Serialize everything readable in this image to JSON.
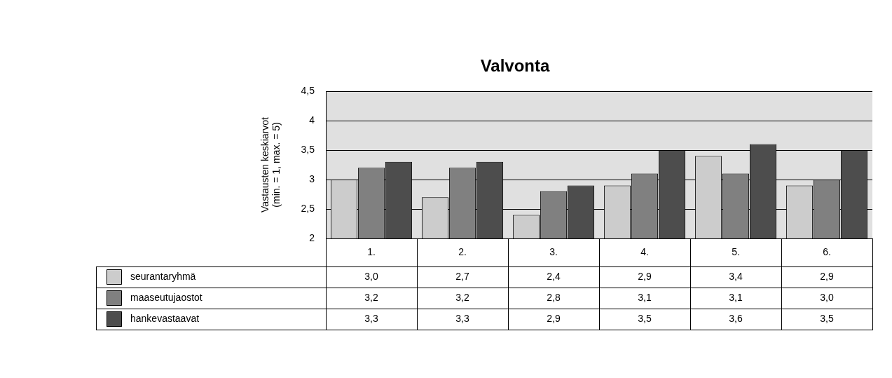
{
  "chart_data": {
    "type": "bar",
    "title": "Valvonta",
    "ylabel": "Vastausten keskiarvot\n(min. = 1, max. = 5)",
    "categories": [
      "1.",
      "2.",
      "3.",
      "4.",
      "5.",
      "6."
    ],
    "series": [
      {
        "name": "seurantaryhmä",
        "color": "#cccccc",
        "values": [
          3.0,
          2.7,
          2.4,
          2.9,
          3.4,
          2.9
        ],
        "value_labels": [
          "3,0",
          "2,7",
          "2,4",
          "2,9",
          "3,4",
          "2,9"
        ]
      },
      {
        "name": "maaseutujaostot",
        "color": "#808080",
        "values": [
          3.2,
          3.2,
          2.8,
          3.1,
          3.1,
          3.0
        ],
        "value_labels": [
          "3,2",
          "3,2",
          "2,8",
          "3,1",
          "3,1",
          "3,0"
        ]
      },
      {
        "name": "hankevastaavat",
        "color": "#4d4d4d",
        "values": [
          3.3,
          3.3,
          2.9,
          3.5,
          3.6,
          3.5
        ],
        "value_labels": [
          "3,3",
          "3,3",
          "2,9",
          "3,5",
          "3,6",
          "3,5"
        ]
      }
    ],
    "ylim": [
      2,
      4.5
    ],
    "yticks": [
      2,
      {
        "value": 2.5,
        "label": "2,5"
      },
      3,
      {
        "value": 3.5,
        "label": "3,5"
      },
      4,
      {
        "value": 4.5,
        "label": "4,5"
      }
    ],
    "grid": "y",
    "legend": "bottom"
  }
}
